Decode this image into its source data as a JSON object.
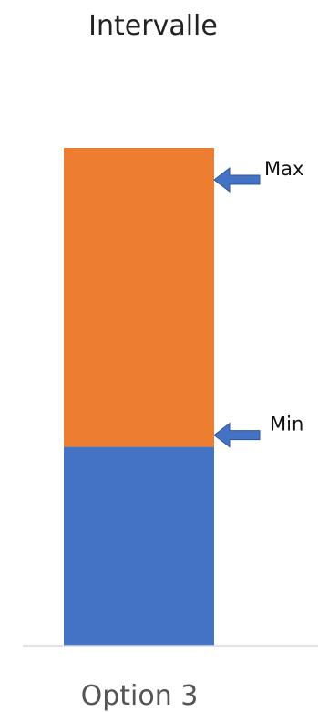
{
  "chart_data": {
    "type": "bar",
    "stacked": true,
    "title": "Intervalle",
    "categories": [
      "Option 3"
    ],
    "series": [
      {
        "values": [
          1
        ],
        "color": "#4472C4"
      },
      {
        "values": [
          1.5
        ],
        "color": "#ED7D31"
      }
    ],
    "ylim": [
      0,
      2.5
    ],
    "grid": false,
    "annotations": [
      {
        "label": "Max",
        "value": 2.5,
        "arrow_color": "#4472C4"
      },
      {
        "label": "Min",
        "value": 1,
        "arrow_color": "#4472C4"
      }
    ]
  }
}
